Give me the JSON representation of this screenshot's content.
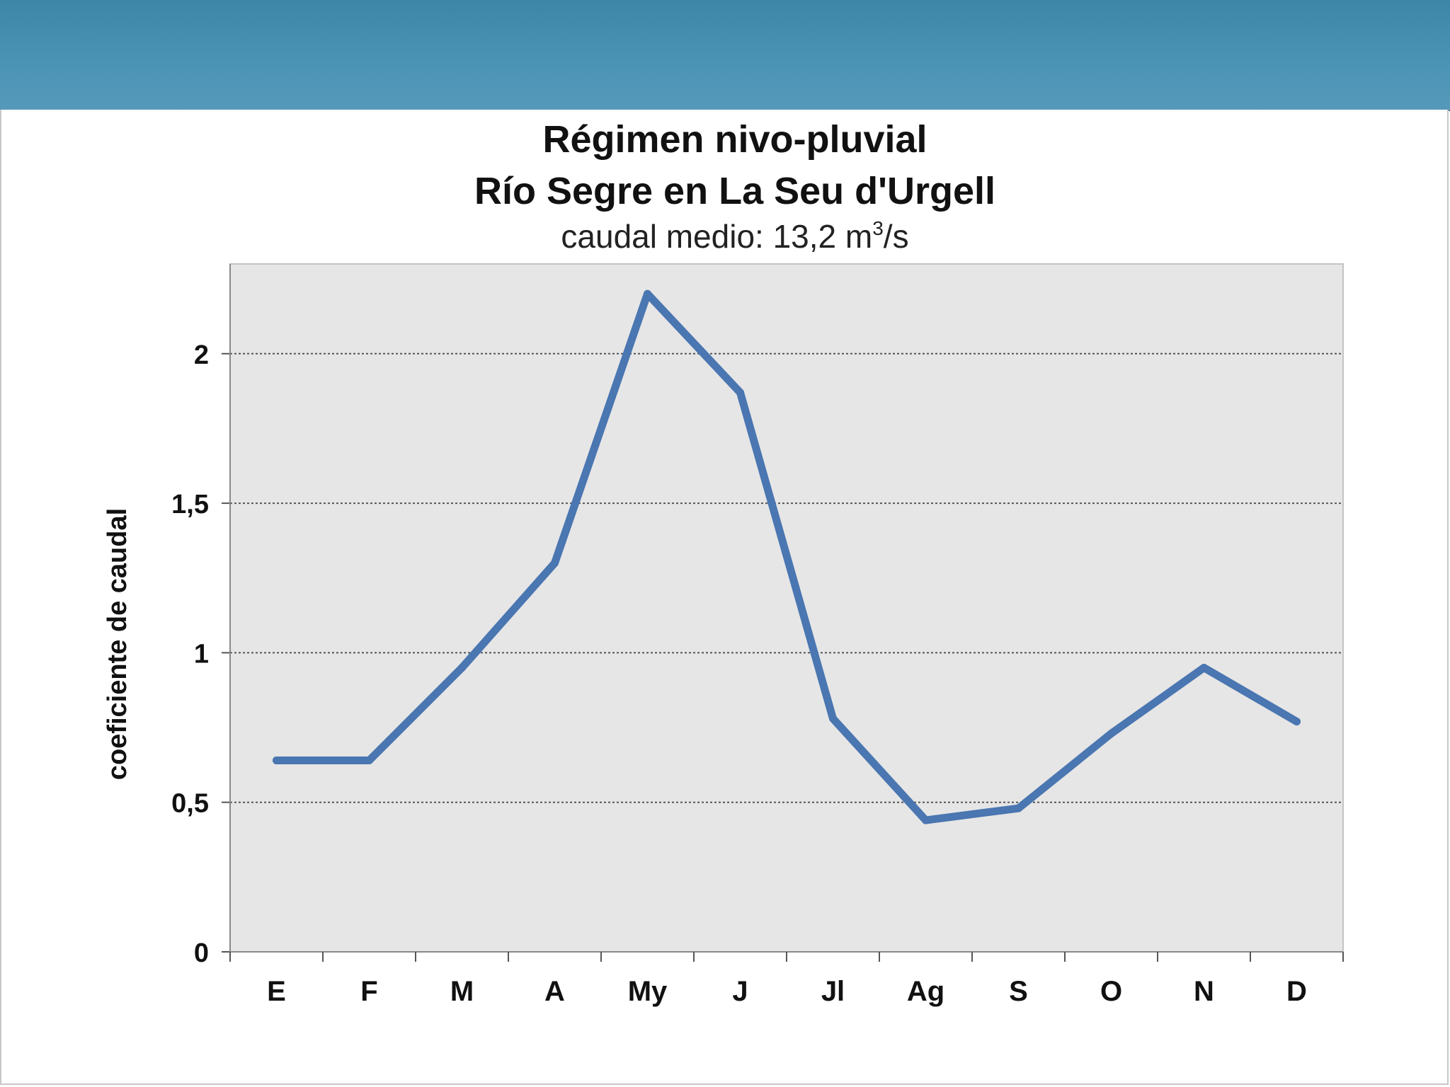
{
  "colors": {
    "header": "#4a90b2",
    "plot_background": "#e6e6e6",
    "line": "#4a76b1",
    "grid": "#555555"
  },
  "chart_data": {
    "type": "line",
    "title_line1": "Régimen nivo-pluvial",
    "title_line2": "Río Segre en La Seu d'Urgell",
    "subtitle_prefix": "caudal medio:  13,2 m",
    "subtitle_superscript": "3",
    "subtitle_suffix": "/s",
    "xlabel": "",
    "ylabel": "coeficiente de caudal",
    "categories": [
      "E",
      "F",
      "M",
      "A",
      "My",
      "J",
      "Jl",
      "Ag",
      "S",
      "O",
      "N",
      "D"
    ],
    "series": [
      {
        "values": [
          0.64,
          0.64,
          0.95,
          1.3,
          2.2,
          1.87,
          0.78,
          0.44,
          0.48,
          0.73,
          0.95,
          0.77
        ]
      }
    ],
    "ylim": [
      0,
      2.3
    ],
    "yticks": [
      0,
      0.5,
      1,
      1.5,
      2
    ],
    "ytick_labels": [
      "0",
      "0,5",
      "1",
      "1,5",
      "2"
    ],
    "grid": "horizontal dotted",
    "legend": "none"
  }
}
